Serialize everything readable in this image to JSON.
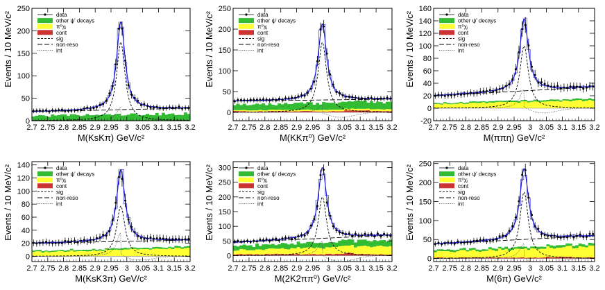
{
  "figure": {
    "ylabel": "Events / 10 MeV/c²"
  },
  "legend": [
    {
      "key": "data",
      "label": "data",
      "style": "marker"
    },
    {
      "key": "other",
      "label": "other ψ' decays",
      "style": "box",
      "color": "#33bb33"
    },
    {
      "key": "pi0chi",
      "label": "π⁰χⱼ",
      "style": "box",
      "color": "#ffff33"
    },
    {
      "key": "cont",
      "label": "cont",
      "style": "box",
      "color": "#cc3333"
    },
    {
      "key": "sig",
      "label": "sig",
      "style": "dash"
    },
    {
      "key": "nonreso",
      "label": "non-reso",
      "style": "longdash"
    },
    {
      "key": "int",
      "label": "int",
      "style": "dot"
    }
  ],
  "colors": {
    "fit": "#1a1adb",
    "data": "#000000",
    "other": "#33bb33",
    "pi0chi": "#ffff33",
    "cont": "#cc3333"
  },
  "chart_data": [
    {
      "type": "line",
      "xlabel": "M(KsKπ) GeV/c²",
      "xlim": [
        2.7,
        3.2
      ],
      "ylim": [
        0,
        250
      ],
      "yticks": [
        0,
        50,
        100,
        150,
        200,
        250
      ],
      "peak": 220,
      "sigPeak": 175,
      "base": 20,
      "slope": 8,
      "green": 12,
      "yellow": 0,
      "red": 0,
      "intAmp": 30,
      "intMin": -22,
      "legendOrder": [
        "data",
        "other",
        "pi0chi",
        "cont",
        "sig",
        "nonreso",
        "int"
      ]
    },
    {
      "type": "line",
      "xlabel": "M(KKπ⁰) GeV/c²",
      "xlim": [
        2.7,
        3.2
      ],
      "ylim": [
        -20,
        250
      ],
      "yticks": [
        0,
        50,
        100,
        150,
        200,
        250
      ],
      "peak": 213,
      "sigPeak": 168,
      "base": 27,
      "slope": 5,
      "green": 14,
      "yellow": 3,
      "red": 3,
      "intAmp": 18,
      "intMin": -12,
      "legendOrder": [
        "data",
        "other",
        "pi0chi",
        "cont",
        "sig",
        "nonreso",
        "int"
      ]
    },
    {
      "type": "line",
      "xlabel": "M(ππη) GeV/c²",
      "xlim": [
        2.7,
        3.2
      ],
      "ylim": [
        -20,
        160
      ],
      "yticks": [
        -20,
        0,
        20,
        40,
        60,
        80,
        100,
        120,
        140,
        160
      ],
      "peak": 143,
      "sigPeak": 100,
      "base": 20,
      "slope": 14,
      "green": 2,
      "yellow": 8,
      "red": 0,
      "intAmp": 30,
      "intMin": -8,
      "legendOrder": [
        "data",
        "other",
        "pi0chi",
        "cont",
        "sig",
        "nonreso",
        "int"
      ]
    },
    {
      "type": "line",
      "xlabel": "M(KsK3π) GeV/c²",
      "xlim": [
        2.7,
        3.2
      ],
      "ylim": [
        -8,
        145
      ],
      "yticks": [
        0,
        20,
        40,
        60,
        80,
        100,
        120,
        140
      ],
      "peak": 133,
      "sigPeak": 77,
      "base": 20,
      "slope": 5,
      "green": 2,
      "yellow": 8,
      "red": 0,
      "intAmp": 36,
      "intMin": -6,
      "legendOrder": [
        "data",
        "other",
        "pi0chi",
        "cont",
        "sig",
        "nonreso",
        "int"
      ]
    },
    {
      "type": "line",
      "xlabel": "M(2K2ππ⁰) GeV/c²",
      "xlim": [
        2.7,
        3.2
      ],
      "ylim": [
        -20,
        320
      ],
      "yticks": [
        0,
        50,
        100,
        150,
        200,
        250,
        300
      ],
      "peak": 300,
      "sigPeak": 200,
      "base": 45,
      "slope": 25,
      "green": 16,
      "yellow": 18,
      "red": 6,
      "intAmp": 50,
      "intMin": -20,
      "legendOrder": [
        "data",
        "other",
        "pi0chi",
        "cont",
        "sig",
        "nonreso",
        "int"
      ]
    },
    {
      "type": "line",
      "xlabel": "M(6π) GeV/c²",
      "xlim": [
        2.7,
        3.2
      ],
      "ylim": [
        -8,
        255
      ],
      "yticks": [
        0,
        50,
        100,
        150,
        200,
        250
      ],
      "peak": 237,
      "sigPeak": 175,
      "base": 38,
      "slope": 22,
      "green": 5,
      "yellow": 18,
      "red": 3,
      "intAmp": 40,
      "intMin": -15,
      "legendOrder": [
        "data",
        "other",
        "pi0chi",
        "cont",
        "sig",
        "nonreso",
        "int"
      ]
    }
  ]
}
